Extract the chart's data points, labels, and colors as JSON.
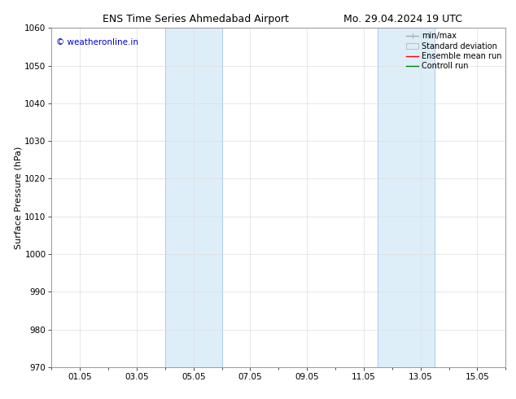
{
  "title_left": "ENS Time Series Ahmedabad Airport",
  "title_right": "Mo. 29.04.2024 19 UTC",
  "ylabel": "Surface Pressure (hPa)",
  "watermark": "© weatheronline.in",
  "watermark_color": "#0000cc",
  "xlim_start": 0.0,
  "xlim_end": 16.0,
  "ylim_bottom": 970,
  "ylim_top": 1060,
  "yticks": [
    970,
    980,
    990,
    1000,
    1010,
    1020,
    1030,
    1040,
    1050,
    1060
  ],
  "xtick_labels": [
    "01.05",
    "03.05",
    "05.05",
    "07.05",
    "09.05",
    "11.05",
    "13.05",
    "15.05"
  ],
  "xtick_positions": [
    1.0,
    3.0,
    5.0,
    7.0,
    9.0,
    11.0,
    13.0,
    15.0
  ],
  "shaded_bands": [
    {
      "x_start": 4.0,
      "x_end": 6.0,
      "color": "#ddeef8"
    },
    {
      "x_start": 11.5,
      "x_end": 13.5,
      "color": "#ddeef8"
    }
  ],
  "band_border_color": "#a8c8e8",
  "background_color": "#ffffff",
  "grid_color": "#dddddd",
  "tick_color": "#000000",
  "title_fontsize": 9,
  "axis_label_fontsize": 8,
  "tick_fontsize": 7.5,
  "legend_fontsize": 7,
  "watermark_fontsize": 7.5
}
